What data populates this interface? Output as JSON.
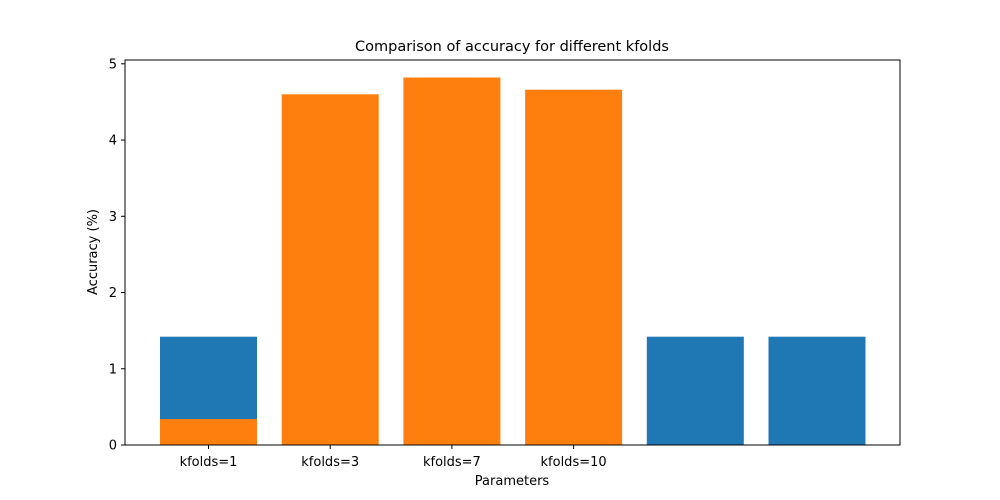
{
  "chart_data": {
    "type": "bar",
    "title": "Comparison of accuracy for different kfolds",
    "xlabel": "Parameters",
    "ylabel": "Accuracy (%)",
    "ylim": [
      0,
      5.05
    ],
    "yticks": [
      0,
      1,
      2,
      3,
      4,
      5
    ],
    "grid": false,
    "categories": [
      "kfolds=1",
      "kfolds=3",
      "kfolds=7",
      "kfolds=10",
      "",
      ""
    ],
    "series": [
      {
        "color": "#1f77b4",
        "values": [
          1.42,
          0,
          0,
          0,
          1.42,
          1.42
        ]
      },
      {
        "color": "#ff7f0e",
        "values": [
          0.34,
          4.6,
          4.82,
          4.66,
          0,
          0
        ]
      }
    ]
  }
}
